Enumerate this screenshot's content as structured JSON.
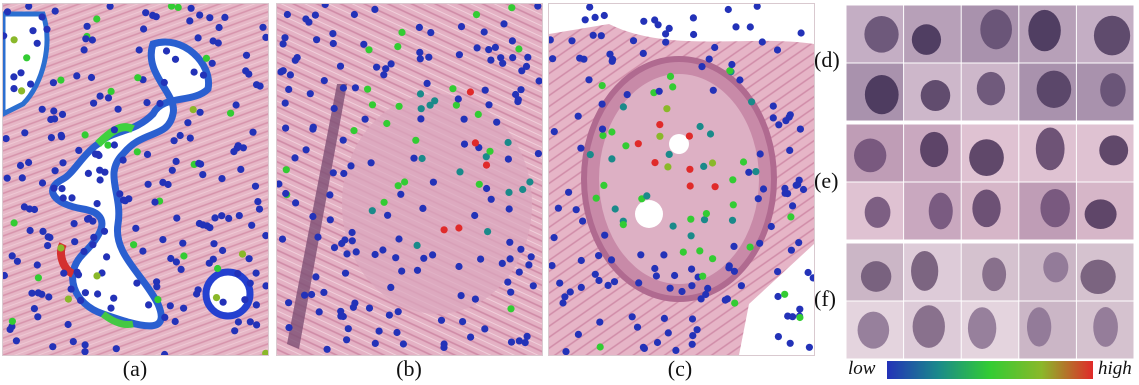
{
  "panels": [
    {
      "id": "a",
      "caption": "(a)"
    },
    {
      "id": "b",
      "caption": "(b)"
    },
    {
      "id": "c",
      "caption": "(c)"
    }
  ],
  "rows": [
    {
      "id": "d",
      "label": "(d)"
    },
    {
      "id": "e",
      "label": "(e)"
    },
    {
      "id": "f",
      "label": "(f)"
    }
  ],
  "legend": {
    "low_label": "low",
    "high_label": "high",
    "gradient_colors": [
      "#2332b8",
      "#1a8a8a",
      "#33cc33",
      "#8ab82a",
      "#e02a2a"
    ]
  },
  "colors": {
    "tissue_pink": "#e8b9c8",
    "stroma_pink": "#d99ab0",
    "nucleus_blue": "#1f33c9",
    "lumen_white": "#ffffff"
  }
}
